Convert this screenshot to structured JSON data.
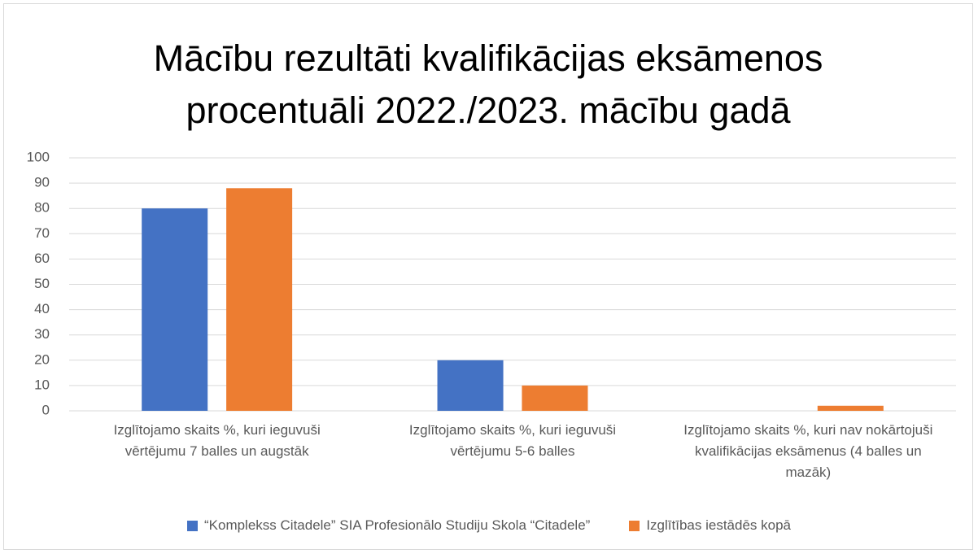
{
  "chart_data": {
    "type": "bar",
    "title": "Mācību rezultāti kvalifikācijas eksāmenos procentuāli 2022./2023. mācību gadā",
    "categories": [
      "Izglītojamo skaits %, kuri ieguvuši vērtējumu 7 balles un augstāk",
      "Izglītojamo skaits %, kuri ieguvuši vērtējumu 5-6 balles",
      "Izglītojamo skaits %, kuri nav nokārtojuši kvalifikācijas eksāmenus (4 balles un mazāk)"
    ],
    "series": [
      {
        "name": "“Komplekss Citadele” SIA Profesionālo Studiju Skola “Citadele”",
        "color": "#4472c4",
        "values": [
          80,
          20,
          0
        ]
      },
      {
        "name": "Izglītības iestādēs kopā",
        "color": "#ed7d31",
        "values": [
          88,
          10,
          2
        ]
      }
    ],
    "ylim": [
      0,
      100
    ],
    "yticks": [
      0,
      10,
      20,
      30,
      40,
      50,
      60,
      70,
      80,
      90,
      100
    ],
    "grid": true,
    "legend": "bottom"
  }
}
